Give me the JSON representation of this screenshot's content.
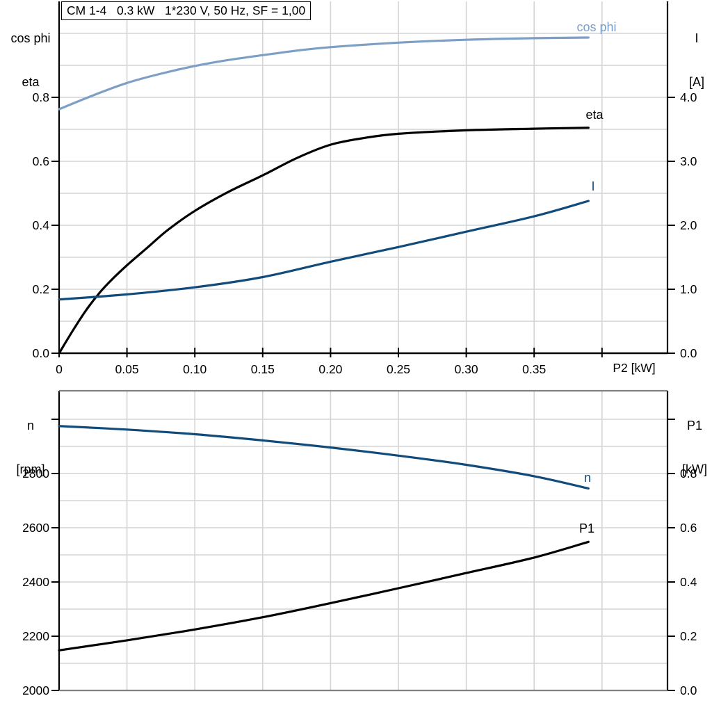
{
  "title_box": "CM 1-4   0.3 kW   1*230 V, 50 Hz, SF = 1,00",
  "colors": {
    "light_blue": "#7d9fc5",
    "dark_blue": "#114b7c",
    "black": "#000000",
    "grid": "#d4d4d4",
    "frame_gray": "#808080"
  },
  "top_chart": {
    "left_axis_title_line1": "cos phi",
    "left_axis_title_line2": "eta",
    "right_axis_title_line1": "I",
    "right_axis_title_line2": "[A]",
    "x_axis_title": "P2 [kW]",
    "curve_labels": {
      "cos_phi": "cos phi",
      "eta": "eta",
      "current": "I"
    }
  },
  "bottom_chart": {
    "left_axis_title_line1": "n",
    "left_axis_title_line2": "[rpm]",
    "right_axis_title_line1": "P1",
    "right_axis_title_line2": "[kW]",
    "curve_labels": {
      "n": "n",
      "p1": "P1"
    }
  },
  "chart_data": [
    {
      "type": "line",
      "title": "CM 1-4  0.3 kW  1*230 V, 50 Hz, SF = 1,00",
      "xlabel": "P2 [kW]",
      "xlim": [
        0,
        0.45
      ],
      "y_left": {
        "label": "cos phi / eta",
        "ylim": [
          0,
          1.0
        ]
      },
      "y_right": {
        "label": "I [A]",
        "ylim": [
          0,
          5.0
        ]
      },
      "grid": true,
      "grid_x": [
        0.05,
        0.1,
        0.15,
        0.2,
        0.25,
        0.3,
        0.35,
        0.4
      ],
      "grid_y": [
        0.1,
        0.2,
        0.3,
        0.4,
        0.5,
        0.6,
        0.7,
        0.8,
        0.9,
        1.0
      ],
      "x_ticks": [
        {
          "v": 0,
          "label": "0"
        },
        {
          "v": 0.05,
          "label": "0.05"
        },
        {
          "v": 0.1,
          "label": "0.10"
        },
        {
          "v": 0.15,
          "label": "0.15"
        },
        {
          "v": 0.2,
          "label": "0.20"
        },
        {
          "v": 0.25,
          "label": "0.25"
        },
        {
          "v": 0.3,
          "label": "0.30"
        },
        {
          "v": 0.35,
          "label": "0.35"
        },
        {
          "v": 0.4,
          "label": ""
        }
      ],
      "y_left_ticks": [
        {
          "v": 0.0,
          "label": "0.0"
        },
        {
          "v": 0.2,
          "label": "0.2"
        },
        {
          "v": 0.4,
          "label": "0.4"
        },
        {
          "v": 0.6,
          "label": "0.6"
        },
        {
          "v": 0.8,
          "label": "0.8"
        }
      ],
      "y_right_ticks": [
        {
          "v": 0.0,
          "label": "0.0"
        },
        {
          "v": 1.0,
          "label": "1.0"
        },
        {
          "v": 2.0,
          "label": "2.0"
        },
        {
          "v": 3.0,
          "label": "3.0"
        },
        {
          "v": 4.0,
          "label": "4.0"
        }
      ],
      "series": [
        {
          "name": "cos phi",
          "axis": "left",
          "color": "light_blue",
          "x": [
            0,
            0.025,
            0.05,
            0.075,
            0.1,
            0.125,
            0.15,
            0.175,
            0.2,
            0.25,
            0.3,
            0.35,
            0.39
          ],
          "y": [
            0.763,
            0.806,
            0.845,
            0.874,
            0.898,
            0.917,
            0.932,
            0.946,
            0.957,
            0.971,
            0.98,
            0.985,
            0.987
          ]
        },
        {
          "name": "eta",
          "axis": "left",
          "color": "black",
          "x": [
            0,
            0.01,
            0.02,
            0.03,
            0.04,
            0.05,
            0.065,
            0.08,
            0.1,
            0.125,
            0.15,
            0.175,
            0.2,
            0.225,
            0.25,
            0.3,
            0.35,
            0.39
          ],
          "y": [
            0,
            0.07,
            0.135,
            0.19,
            0.235,
            0.275,
            0.33,
            0.385,
            0.445,
            0.505,
            0.556,
            0.61,
            0.652,
            0.673,
            0.686,
            0.697,
            0.702,
            0.705
          ]
        },
        {
          "name": "I",
          "axis": "right",
          "color": "dark_blue",
          "x": [
            0,
            0.05,
            0.1,
            0.15,
            0.2,
            0.25,
            0.3,
            0.35,
            0.39
          ],
          "y": [
            0.84,
            0.92,
            1.03,
            1.19,
            1.43,
            1.66,
            1.9,
            2.14,
            2.38
          ]
        }
      ]
    },
    {
      "type": "line",
      "title": "",
      "xlabel": "",
      "xlim": [
        0,
        0.45
      ],
      "y_left": {
        "label": "n [rpm]",
        "ylim": [
          2000,
          3000
        ]
      },
      "y_right": {
        "label": "P1 [kW]",
        "ylim": [
          0,
          1.0
        ]
      },
      "grid": true,
      "grid_x": [
        0.05,
        0.1,
        0.15,
        0.2,
        0.25,
        0.3,
        0.35,
        0.4
      ],
      "grid_y": [
        2100,
        2200,
        2300,
        2400,
        2500,
        2600,
        2700,
        2800,
        2900,
        3000
      ],
      "x_ticks": [],
      "y_left_ticks": [
        {
          "v": 2000,
          "label": "2000"
        },
        {
          "v": 2200,
          "label": "2200"
        },
        {
          "v": 2400,
          "label": "2400"
        },
        {
          "v": 2600,
          "label": "2600"
        },
        {
          "v": 2800,
          "label": "2800"
        },
        {
          "v": 3000,
          "label": ""
        }
      ],
      "y_right_ticks": [
        {
          "v": 0.0,
          "label": "0.0"
        },
        {
          "v": 0.2,
          "label": "0.2"
        },
        {
          "v": 0.4,
          "label": "0.4"
        },
        {
          "v": 0.6,
          "label": "0.6"
        },
        {
          "v": 0.8,
          "label": "0.8"
        },
        {
          "v": 1.0,
          "label": ""
        }
      ],
      "series": [
        {
          "name": "n",
          "axis": "left",
          "color": "dark_blue",
          "x": [
            0,
            0.05,
            0.1,
            0.15,
            0.2,
            0.25,
            0.3,
            0.35,
            0.39
          ],
          "y": [
            2975,
            2962,
            2945,
            2922,
            2896,
            2866,
            2832,
            2790,
            2745
          ]
        },
        {
          "name": "P1",
          "axis": "right",
          "color": "black",
          "x": [
            0,
            0.05,
            0.1,
            0.15,
            0.2,
            0.25,
            0.3,
            0.35,
            0.39
          ],
          "y": [
            0.148,
            0.185,
            0.225,
            0.27,
            0.322,
            0.377,
            0.433,
            0.49,
            0.548
          ]
        }
      ]
    }
  ]
}
